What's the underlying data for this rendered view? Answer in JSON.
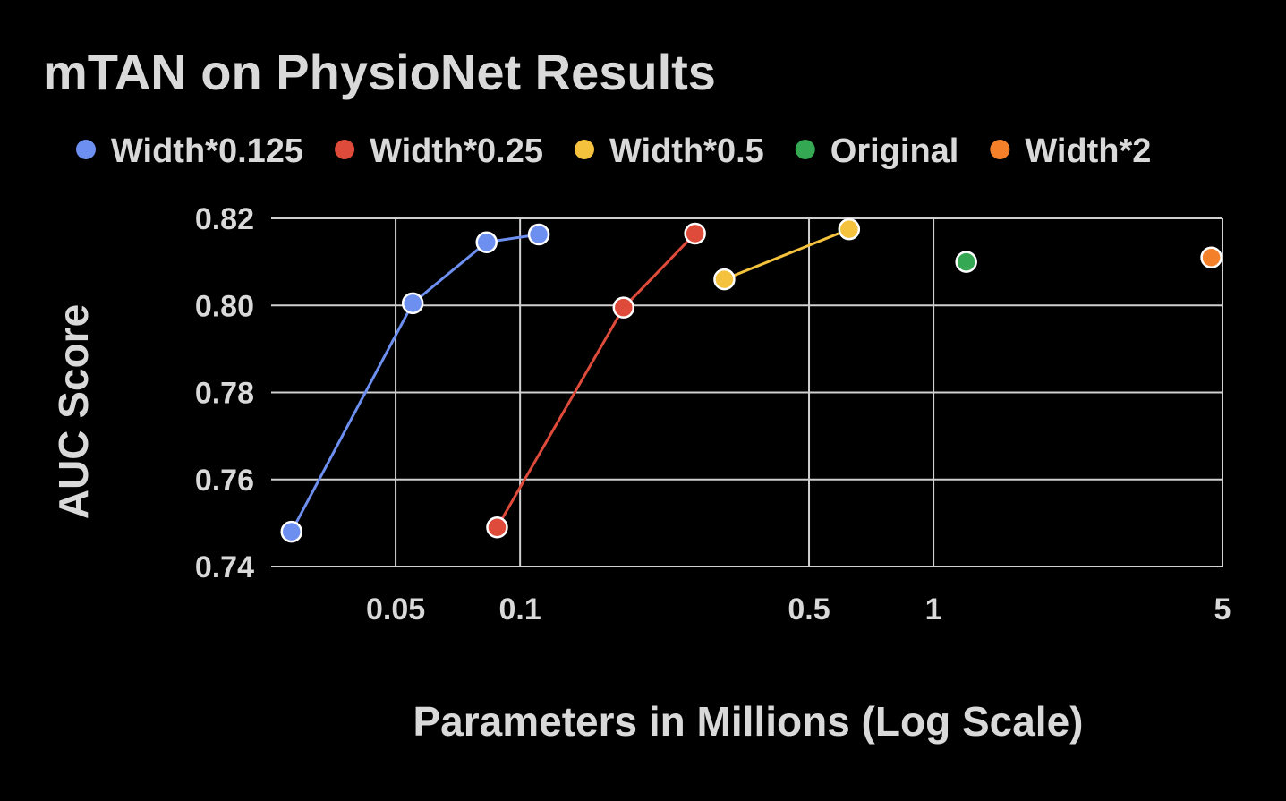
{
  "chart_data": {
    "type": "scatter",
    "title": "mTAN on PhysioNet Results",
    "xlabel": "Parameters in Millions (Log Scale)",
    "ylabel": "AUC Score",
    "x_scale": "log",
    "xlim": [
      0.025,
      5
    ],
    "ylim": [
      0.74,
      0.82
    ],
    "x_ticks": [
      0.05,
      0.1,
      0.5,
      1,
      5
    ],
    "x_tick_labels": [
      "0.05",
      "0.1",
      "0.5",
      "1",
      "5"
    ],
    "y_ticks": [
      0.74,
      0.76,
      0.78,
      0.8,
      0.82
    ],
    "y_tick_labels": [
      "0.74",
      "0.76",
      "0.78",
      "0.80",
      "0.82"
    ],
    "grid": true,
    "legend": "top",
    "series": [
      {
        "name": "Width*0.125",
        "color": "#6d8ff0",
        "connected": true,
        "points": [
          {
            "x": 0.028,
            "y": 0.748
          },
          {
            "x": 0.055,
            "y": 0.8005
          },
          {
            "x": 0.083,
            "y": 0.8145
          },
          {
            "x": 0.111,
            "y": 0.8163
          }
        ]
      },
      {
        "name": "Width*0.25",
        "color": "#de4b3b",
        "connected": true,
        "points": [
          {
            "x": 0.088,
            "y": 0.749
          },
          {
            "x": 0.178,
            "y": 0.7995
          },
          {
            "x": 0.265,
            "y": 0.8165
          }
        ]
      },
      {
        "name": "Width*0.5",
        "color": "#f4c23c",
        "connected": true,
        "points": [
          {
            "x": 0.312,
            "y": 0.806
          },
          {
            "x": 0.625,
            "y": 0.8175
          }
        ]
      },
      {
        "name": "Original",
        "color": "#34a853",
        "connected": false,
        "points": [
          {
            "x": 1.2,
            "y": 0.81
          }
        ]
      },
      {
        "name": "Width*2",
        "color": "#f5802a",
        "connected": false,
        "points": [
          {
            "x": 4.7,
            "y": 0.811
          }
        ]
      }
    ]
  }
}
